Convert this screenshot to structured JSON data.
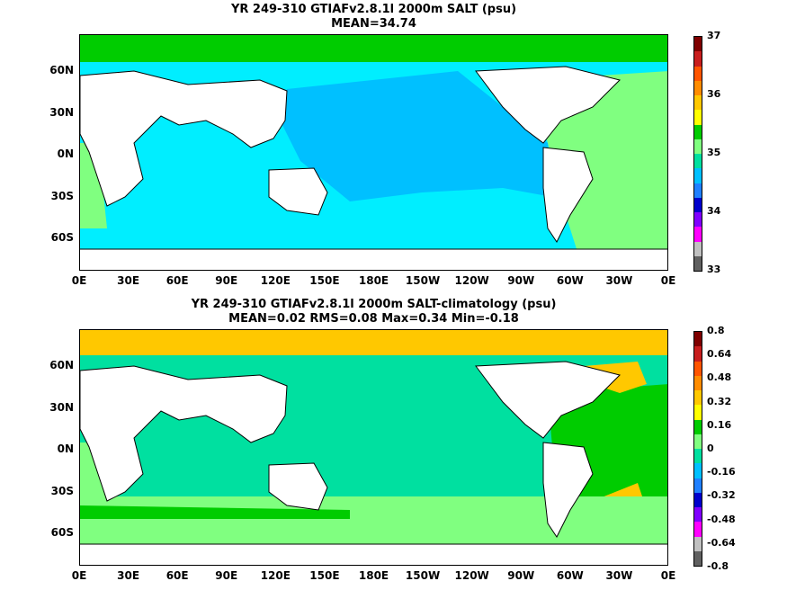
{
  "panels": [
    {
      "title_line1": "YR 249-310 GTIAFv2.8.1l 2000m SALT (psu)",
      "title_line2": "MEAN=34.74"
    },
    {
      "title_line1": "YR 249-310 GTIAFv2.8.1l 2000m SALT-climatology (psu)",
      "title_line2": "MEAN=0.02   RMS=0.08   Max=0.34   Min=-0.18"
    }
  ],
  "lat_labels": [
    "60N",
    "30N",
    "0N",
    "30S",
    "60S"
  ],
  "lon_labels": [
    "0E",
    "30E",
    "60E",
    "90E",
    "120E",
    "150E",
    "180E",
    "150W",
    "120W",
    "90W",
    "60W",
    "30W",
    "0E"
  ],
  "colorbars": [
    {
      "labels": [
        "37",
        "36",
        "35",
        "34",
        "33"
      ],
      "colors": [
        "#7f0000",
        "#c81e1e",
        "#ff5500",
        "#ff8c00",
        "#ffc800",
        "#ffff00",
        "#00cc00",
        "#80ff80",
        "#00e0a0",
        "#00c0ff",
        "#2080ff",
        "#0000cc",
        "#8000ff",
        "#ff00ff",
        "#c0c0c0",
        "#606060"
      ]
    },
    {
      "labels": [
        "0.8",
        "0.64",
        "0.48",
        "0.32",
        "0.16",
        "0",
        "-0.16",
        "-0.32",
        "-0.48",
        "-0.64",
        "-0.8"
      ],
      "colors": [
        "#7f0000",
        "#c81e1e",
        "#ff5500",
        "#ff8c00",
        "#ffc800",
        "#ffff00",
        "#00cc00",
        "#80ff80",
        "#00e0a0",
        "#00c0ff",
        "#2080ff",
        "#0000cc",
        "#8000ff",
        "#ff00ff",
        "#c0c0c0",
        "#606060"
      ]
    }
  ],
  "map_colors": {
    "pacific_top": "#00c0ff",
    "indian_top": "#00eeff",
    "atlantic_top": "#80ff80",
    "arctic_top": "#00cc00",
    "southern_top": "#00eeff",
    "pacific_bottom": "#00e0a0",
    "atlantic_bottom": "#00cc00",
    "southern_bottom": "#80ff80",
    "arctic_bottom": "#ffc800",
    "land": "#ffffff"
  }
}
